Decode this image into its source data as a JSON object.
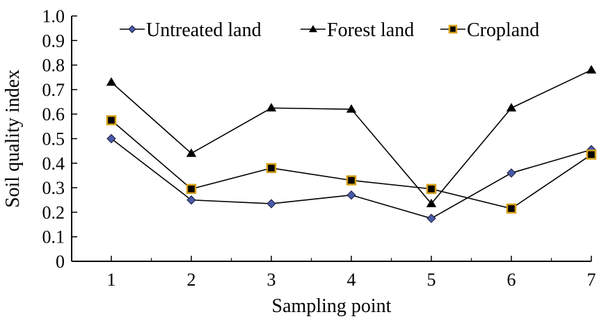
{
  "chart_data": {
    "type": "line",
    "title": "",
    "xlabel": "Sampling point",
    "ylabel": "Soil quality index",
    "categories": [
      "1",
      "2",
      "3",
      "4",
      "5",
      "6",
      "7"
    ],
    "ylim": [
      0,
      1.0
    ],
    "yticks": [
      "0",
      "0.1",
      "0.2",
      "0.3",
      "0.4",
      "0.5",
      "0.6",
      "0.7",
      "0.8",
      "0.9",
      "1.0"
    ],
    "grid": false,
    "legend_position": "top",
    "series": [
      {
        "name": "Untreated land",
        "marker": "diamond",
        "marker_color": "#4a5aa8",
        "line_color": "#000000",
        "values": [
          0.5,
          0.25,
          0.235,
          0.27,
          0.175,
          0.36,
          0.455
        ]
      },
      {
        "name": "Forest land",
        "marker": "triangle",
        "marker_color": "#000000",
        "line_color": "#000000",
        "values": [
          0.73,
          0.44,
          0.625,
          0.62,
          0.235,
          0.625,
          0.78
        ]
      },
      {
        "name": "Cropland",
        "marker": "square",
        "marker_color": "#000000",
        "marker_edge_color": "#d4a017",
        "line_color": "#000000",
        "values": [
          0.575,
          0.295,
          0.38,
          0.33,
          0.295,
          0.215,
          0.435
        ]
      }
    ]
  }
}
